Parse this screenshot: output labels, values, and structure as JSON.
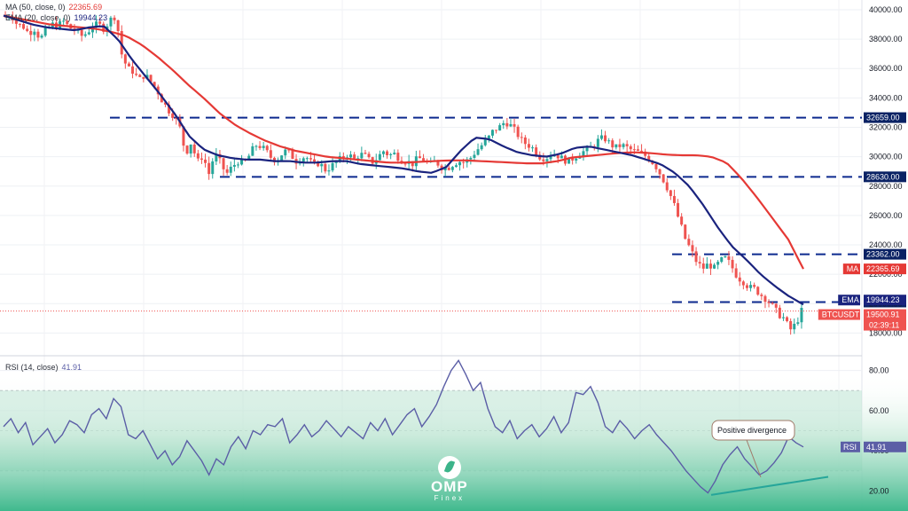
{
  "legend": {
    "ma_label": "MA (50, close, 0)",
    "ma_value": "22365.69",
    "ema_label": "EMA (20, close, 0)",
    "ema_value": "19944.23",
    "rsi_label": "RSI (14, close)",
    "rsi_value": "41.91"
  },
  "colors": {
    "up": "#26a69a",
    "down": "#ef5350",
    "ma": "#e53935",
    "ema": "#1a237e",
    "rsi": "#5b5ea6",
    "level": "#0d2a8f",
    "divergence": "#26a69a",
    "rsi_band": "#9fd8c0"
  },
  "chart_data": [
    {
      "type": "candlestick",
      "symbol": "BTCUSDT",
      "y_ticks": [
        18000,
        20000,
        22000,
        24000,
        26000,
        28000,
        30000,
        32000,
        34000,
        36000,
        38000,
        40000
      ],
      "ylim": [
        17000,
        40300
      ],
      "grid": true,
      "levels": [
        {
          "value": 32659,
          "label": "32659.00"
        },
        {
          "value": 28630,
          "label": "28630.00"
        },
        {
          "value": 23362,
          "label": "23362.00"
        },
        {
          "value": 20111,
          "label": "20111.00"
        }
      ],
      "price_tags": [
        {
          "name": "MA",
          "value": "22365.69",
          "y": 22365.69
        },
        {
          "name": "EMA",
          "value": "19944.23",
          "y": 19944.23
        },
        {
          "name": "BTCUSDT",
          "value": "19500.91",
          "sub": "02:39:11",
          "y": 19500.91
        }
      ],
      "close_path": [
        39500,
        39700,
        39000,
        38900,
        38400,
        38700,
        38000,
        38600,
        39000,
        38900,
        39200,
        38800,
        38600,
        38200,
        38400,
        38900,
        39000,
        38700,
        39300,
        39600,
        37000,
        36000,
        35800,
        35200,
        35600,
        35100,
        34600,
        33800,
        33200,
        32800,
        32000,
        30200,
        31000,
        29600,
        30100,
        28800,
        30200,
        29600,
        28800,
        29300,
        29700,
        29500,
        30100,
        30800,
        30700,
        30300,
        29800,
        29900,
        30400,
        30200,
        29700,
        30000,
        29900,
        29400,
        29600,
        29100,
        29300,
        29700,
        29900,
        30200,
        29800,
        30200,
        30000,
        29600,
        29900,
        30400,
        30100,
        30200,
        29800,
        29700,
        29500,
        29900,
        29800,
        29400,
        29700,
        29300,
        29200,
        29500,
        29700,
        29600,
        29900,
        30400,
        30800,
        31200,
        31800,
        32000,
        32400,
        32100,
        31600,
        31000,
        30800,
        30500,
        30000,
        29900,
        30200,
        30100,
        29800,
        29700,
        30000,
        30300,
        30400,
        30700,
        31100,
        31300,
        30900,
        30600,
        30800,
        30600,
        30400,
        30300,
        30100,
        29800,
        29300,
        28600,
        27800,
        26800,
        25600,
        24400,
        23600,
        22800,
        22400,
        22700,
        22400,
        22900,
        23100,
        22500,
        21800,
        21500,
        21100,
        21000,
        20600,
        20300,
        19800,
        19300,
        19000,
        18200,
        18600,
        19500
      ],
      "ma_path": [
        39600,
        39400,
        39200,
        39000,
        38900,
        38800,
        38700,
        38500,
        38200,
        37600,
        36800,
        35900,
        34900,
        34000,
        33000,
        32200,
        31600,
        31100,
        30700,
        30400,
        30200,
        30000,
        29900,
        29800,
        29700,
        29600,
        29600,
        29650,
        29700,
        29750,
        29750,
        29700,
        29650,
        29600,
        29550,
        29550,
        29700,
        29950,
        30050,
        30150,
        30250,
        30300,
        30250,
        30150,
        30100,
        30100,
        30000,
        29600,
        28500,
        27200,
        25800,
        24400,
        22365.69
      ],
      "ema_path": [
        39600,
        39300,
        39000,
        38800,
        38700,
        38600,
        38800,
        38900,
        38000,
        36600,
        35400,
        34200,
        32900,
        31400,
        30500,
        30100,
        29900,
        29800,
        29800,
        29700,
        29700,
        29600,
        29600,
        29700,
        29700,
        29500,
        29400,
        29300,
        29200,
        29000,
        28900,
        29300,
        30400,
        31300,
        31200,
        30700,
        30300,
        30100,
        30000,
        30200,
        30600,
        30700,
        30500,
        30300,
        30100,
        29800,
        29500,
        28900,
        28000,
        26700,
        25200,
        23900,
        23000,
        22000,
        21200,
        20500,
        19944.23
      ]
    },
    {
      "type": "line",
      "name": "RSI (14, close)",
      "y_ticks": [
        20,
        40,
        60,
        80
      ],
      "ylim": [
        10,
        86
      ],
      "band": [
        30,
        70
      ],
      "values": [
        52,
        56,
        49,
        54,
        43,
        47,
        51,
        44,
        48,
        55,
        53,
        49,
        58,
        61,
        56,
        66,
        62,
        48,
        46,
        50,
        43,
        36,
        40,
        33,
        37,
        45,
        40,
        35,
        28,
        36,
        33,
        42,
        47,
        41,
        50,
        48,
        53,
        52,
        56,
        44,
        48,
        53,
        47,
        50,
        55,
        51,
        47,
        52,
        49,
        46,
        54,
        50,
        56,
        48,
        53,
        58,
        61,
        52,
        57,
        63,
        72,
        80,
        85,
        78,
        70,
        74,
        61,
        52,
        49,
        55,
        46,
        50,
        53,
        47,
        51,
        57,
        49,
        54,
        69,
        68,
        72,
        64,
        52,
        49,
        55,
        51,
        46,
        50,
        53,
        48,
        44,
        40,
        35,
        30,
        26,
        22,
        19,
        25,
        33,
        38,
        42,
        36,
        32,
        28,
        30,
        34,
        39,
        47,
        44,
        41.91
      ],
      "annotation": "Positive divergence",
      "divergence_price": [
        19000,
        17600
      ],
      "divergence_rsi": [
        18,
        27
      ]
    }
  ],
  "logo": {
    "name": "OMP",
    "sub": "Finex"
  }
}
